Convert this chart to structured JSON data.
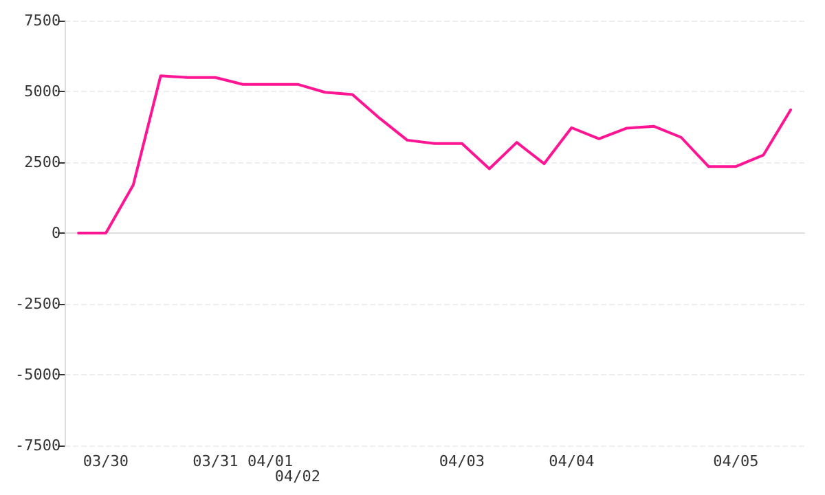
{
  "chart_data": {
    "type": "line",
    "categories": [
      null,
      "03/30",
      null,
      null,
      null,
      "03/31",
      null,
      "04/01",
      "04/02",
      null,
      null,
      null,
      null,
      null,
      "04/03",
      null,
      null,
      null,
      "04/04",
      null,
      null,
      null,
      null,
      null,
      "04/05",
      null,
      null
    ],
    "series": [
      {
        "color": "#ff1493",
        "values": [
          0,
          0,
          1700,
          5550,
          5490,
          5490,
          5250,
          5250,
          5250,
          4970,
          4890,
          4050,
          3280,
          3160,
          3160,
          2270,
          3200,
          2450,
          3720,
          3330,
          3700,
          3770,
          3380,
          2350,
          2350,
          2750,
          4350
        ]
      }
    ],
    "ylim": [
      -7500,
      7500
    ],
    "yticks": [
      -7500,
      -5000,
      -2500,
      0,
      2500,
      5000,
      7500
    ],
    "grid": "y",
    "marker": "none",
    "line_style": "solid"
  }
}
